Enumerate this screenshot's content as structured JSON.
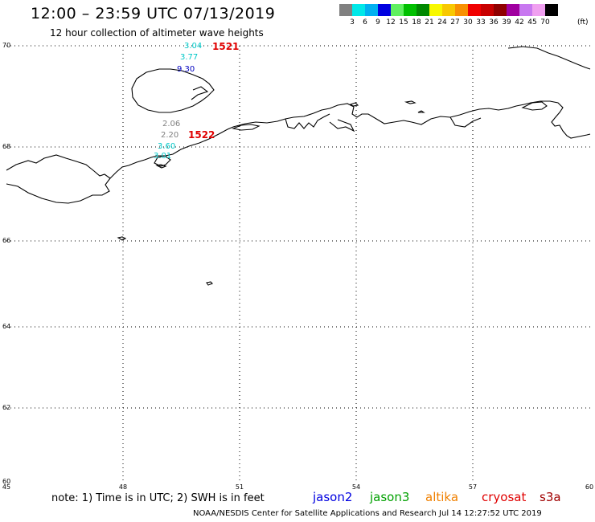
{
  "header": {
    "title": "12:00 – 23:59 UTC 07/13/2019",
    "subtitle": "12 hour collection of altimeter wave heights"
  },
  "legend": {
    "unit": "(ft)",
    "swatches": [
      {
        "color": "#808080",
        "label": ""
      },
      {
        "color": "#00e8e8",
        "label": "3"
      },
      {
        "color": "#00b0f0",
        "label": "6"
      },
      {
        "color": "#0000e0",
        "label": "9"
      },
      {
        "color": "#60f060",
        "label": "12"
      },
      {
        "color": "#00c000",
        "label": "15"
      },
      {
        "color": "#008800",
        "label": "18"
      },
      {
        "color": "#f8f800",
        "label": "21"
      },
      {
        "color": "#f8c800",
        "label": "24"
      },
      {
        "color": "#f89000",
        "label": "27"
      },
      {
        "color": "#f00000",
        "label": "30"
      },
      {
        "color": "#c80000",
        "label": "33"
      },
      {
        "color": "#900000",
        "label": "36"
      },
      {
        "color": "#a000a0",
        "label": "39"
      },
      {
        "color": "#c878f0",
        "label": "42"
      },
      {
        "color": "#f0a0f0",
        "label": "45"
      },
      {
        "color": "#000000",
        "label": "70"
      }
    ]
  },
  "axes": {
    "lat_labels": [
      "70",
      "68",
      "66",
      "64",
      "62",
      "60"
    ],
    "lon_labels": [
      "45",
      "48",
      "51",
      "54",
      "57",
      "60"
    ]
  },
  "observations": [
    {
      "value": "3.04",
      "color": "#00c8c8"
    },
    {
      "value": "3.77",
      "color": "#00c8c8"
    },
    {
      "value": "9.30",
      "color": "#0000c0"
    },
    {
      "value": "2.06",
      "color": "#808080"
    },
    {
      "value": "2.20",
      "color": "#808080"
    },
    {
      "value": "3.60",
      "color": "#00c8c8"
    },
    {
      "value": "3.01",
      "color": "#00c8c8"
    }
  ],
  "track_ids": [
    "1521",
    "1522"
  ],
  "footer": {
    "note": "note: 1) Time is in UTC; 2) SWH is in feet",
    "credit": "NOAA/NESDIS Center for Satellite Applications and Research    Jul 14 12:27:52 UTC 2019",
    "satellites": [
      {
        "name": "jason2",
        "color": "#0000e0"
      },
      {
        "name": "jason3",
        "color": "#00a000"
      },
      {
        "name": "altika",
        "color": "#f08000"
      },
      {
        "name": "cryosat",
        "color": "#e00000"
      },
      {
        "name": "s3a",
        "color": "#a00000"
      }
    ]
  }
}
